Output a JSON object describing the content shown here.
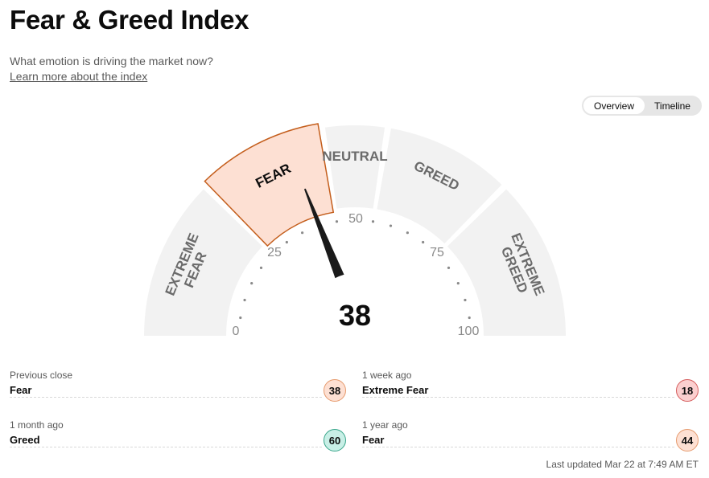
{
  "header": {
    "title": "Fear & Greed Index",
    "subtitle": "What emotion is driving the market now?",
    "learn_link": "Learn more about the index"
  },
  "view_toggle": {
    "options": [
      "Overview",
      "Timeline"
    ],
    "selected": "Overview"
  },
  "gauge": {
    "value": 38,
    "min": 0,
    "max": 100,
    "tick_labels": [
      "0",
      "25",
      "50",
      "75",
      "100"
    ],
    "segments": [
      {
        "label_lines": [
          "EXTREME",
          "FEAR"
        ],
        "range": [
          0,
          25
        ]
      },
      {
        "label_lines": [
          "FEAR"
        ],
        "range": [
          25,
          45
        ]
      },
      {
        "label_lines": [
          "NEUTRAL"
        ],
        "range": [
          45,
          55
        ]
      },
      {
        "label_lines": [
          "GREED"
        ],
        "range": [
          55,
          75
        ]
      },
      {
        "label_lines": [
          "EXTREME",
          "GREED"
        ],
        "range": [
          75,
          100
        ]
      }
    ],
    "active_segment": "FEAR",
    "colors": {
      "segment": "#f2f2f2",
      "active_fill": "#fde0d3",
      "active_stroke": "#c45e1c",
      "label": "#6b6b6b",
      "needle": "#1a1a1a",
      "dots": "#8a8a8a"
    }
  },
  "history": [
    {
      "label": "Previous close",
      "rating": "Fear",
      "value": "38",
      "color": "#fde0d3",
      "border": "#e69a6d"
    },
    {
      "label": "1 week ago",
      "rating": "Extreme Fear",
      "value": "18",
      "color": "#fbcfcf",
      "border": "#d55b5b"
    },
    {
      "label": "1 month ago",
      "rating": "Greed",
      "value": "60",
      "color": "#c8efe6",
      "border": "#38a58a"
    },
    {
      "label": "1 year ago",
      "rating": "Fear",
      "value": "44",
      "color": "#fde0d3",
      "border": "#e69a6d"
    }
  ],
  "footer": {
    "last_updated": "Last updated Mar 22 at 7:49 AM ET"
  }
}
